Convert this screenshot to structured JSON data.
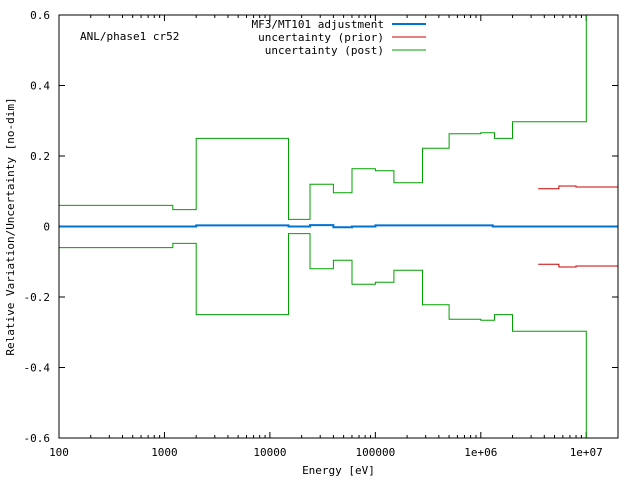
{
  "chart_data": {
    "type": "line",
    "step": true,
    "annotation": "ANL/phase1 cr52",
    "xlabel": "Energy [eV]",
    "ylabel": "Relative Variation/Uncertainty [no-dim]",
    "xscale": "log",
    "xlim": [
      100,
      20000000
    ],
    "ylim": [
      -0.6,
      0.6
    ],
    "x_ticks": [
      {
        "value": 100,
        "label": "100"
      },
      {
        "value": 1000,
        "label": "1000"
      },
      {
        "value": 10000,
        "label": "10000"
      },
      {
        "value": 100000,
        "label": "100000"
      },
      {
        "value": 1000000,
        "label": "1e+06"
      },
      {
        "value": 10000000,
        "label": "1e+07"
      }
    ],
    "y_ticks": [
      {
        "value": 0.6,
        "label": "0.6"
      },
      {
        "value": 0.4,
        "label": "0.4"
      },
      {
        "value": 0.2,
        "label": "0.2"
      },
      {
        "value": 0,
        "label": "0"
      },
      {
        "value": -0.2,
        "label": "-0.2"
      },
      {
        "value": -0.4,
        "label": "-0.4"
      },
      {
        "value": -0.6,
        "label": "-0.6"
      }
    ],
    "legend_position": "top",
    "series": [
      {
        "name": "MF3/MT101 adjustment",
        "color": "#0072d4",
        "bins": [
          100,
          1200,
          2000,
          15000,
          24000,
          40000,
          60000,
          100000,
          1300000,
          20000000
        ],
        "values": [
          0.0,
          0.0,
          0.003,
          0.0,
          0.004,
          -0.002,
          0.0,
          0.003,
          0.0
        ]
      },
      {
        "name": "uncertainty (prior)",
        "color": "#cc0000",
        "mirrored": true,
        "bins": [
          3500000,
          5500000,
          8000000,
          20000000
        ],
        "values": [
          0.107,
          0.115,
          0.112
        ]
      },
      {
        "name": "uncertainty (post)",
        "color": "#00a000",
        "mirrored": true,
        "bins": [
          100,
          1200,
          2000,
          15000,
          24000,
          40000,
          60000,
          100000,
          150000,
          280000,
          500000,
          1000000,
          1350000,
          2000000,
          10000000,
          20000000
        ],
        "values": [
          0.06,
          0.048,
          0.25,
          0.02,
          0.12,
          0.096,
          0.164,
          0.158,
          0.124,
          0.222,
          0.263,
          0.266,
          0.25,
          0.297,
          0.6
        ]
      }
    ]
  }
}
